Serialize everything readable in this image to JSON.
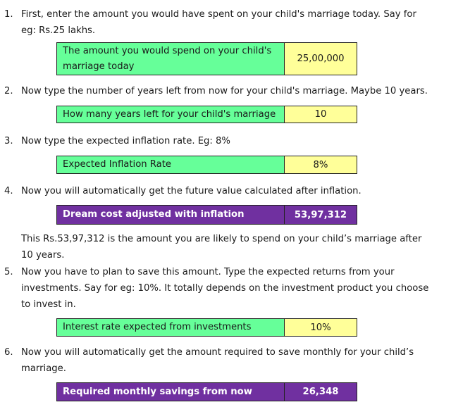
{
  "colors": {
    "input_label_bg": "#66ff99",
    "input_value_bg": "#ffff99",
    "output_bg": "#7030a0",
    "output_text": "#ffffff"
  },
  "steps": [
    {
      "num": "1.",
      "text": "First, enter the amount you would have spent on your child's marriage today. Say for eg: Rs.25 lakhs."
    },
    {
      "num": "2.",
      "text": "Now type the number of years left from now for your child's marriage. Maybe 10 years."
    },
    {
      "num": "3.",
      "text": "Now type the expected inflation rate. Eg: 8%"
    },
    {
      "num": "4.",
      "text": "Now you will automatically get the future value calculated after inflation."
    },
    {
      "num": "5.",
      "text": "Now you have to plan to save this amount. Type the expected returns from your investments. Say for eg: 10%. It totally depends on the investment product you choose to invest in."
    },
    {
      "num": "6.",
      "text": "Now you will automatically get the amount required to save monthly for your child’s marriage."
    }
  ],
  "rows": {
    "amount": {
      "label": "The amount you would spend on your child's marriage today",
      "value": "25,00,000"
    },
    "years": {
      "label": "How many years left for your child's marriage",
      "value": "10"
    },
    "inflation": {
      "label": "Expected Inflation Rate",
      "value": "8%"
    },
    "dream_cost": {
      "label": "Dream cost adjusted with inflation",
      "value": "53,97,312"
    },
    "interest": {
      "label": "Interest rate expected from investments",
      "value": "10%"
    },
    "monthly": {
      "label": "Required monthly savings from now",
      "value": "26,348"
    }
  },
  "note": "This Rs.53,97,312 is the amount you are likely to spend on your child’s marriage after 10 years."
}
